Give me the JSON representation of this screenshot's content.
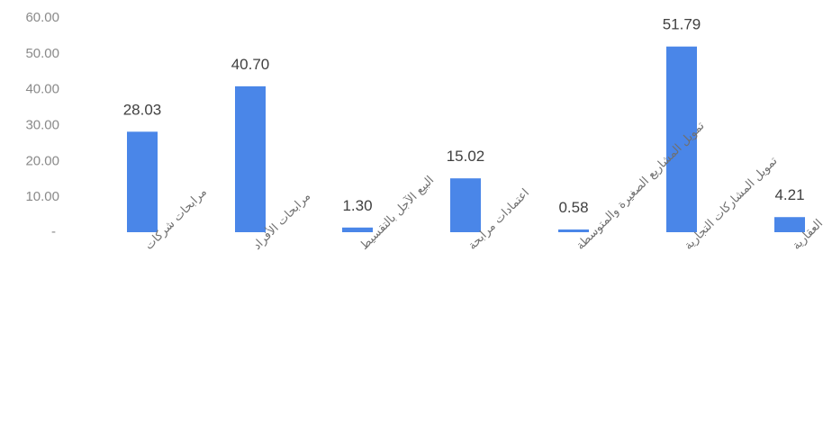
{
  "chart_data": {
    "type": "bar",
    "title": "",
    "xlabel": "",
    "ylabel": "",
    "ylim": [
      0,
      60
    ],
    "y_ticks": [
      "60.00",
      "50.00",
      "40.00",
      "30.00",
      "20.00",
      "10.00"
    ],
    "grid": false,
    "legend": "none",
    "bar_color": "#4a86e8",
    "categories": [
      "مرابحات شركات",
      "مرابحات الأفراد",
      "البيع الآجل بالتقسيط",
      "اعتمادات مرابحة",
      "تمويل المشاريع الصغيرة والمتوسطة",
      "تمويل المشاركات التجارية",
      "تمويل الاستثمارات العقارية"
    ],
    "values": [
      28.03,
      40.7,
      1.3,
      15.02,
      0.58,
      51.79,
      4.21
    ],
    "value_labels": [
      "28.03",
      "40.70",
      "1.30",
      "15.02",
      "0.58",
      "51.79",
      "4.21"
    ]
  }
}
